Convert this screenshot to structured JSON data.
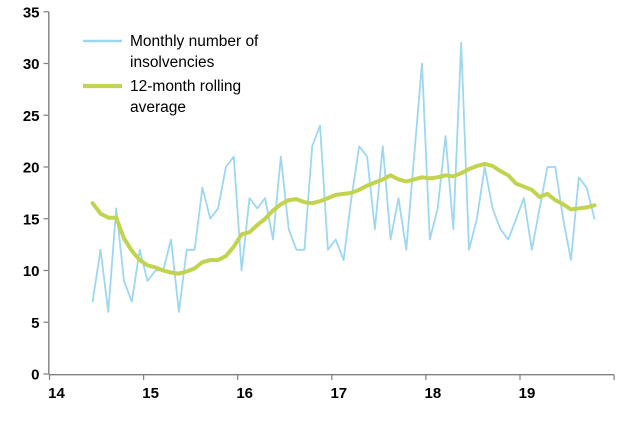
{
  "chart_data": {
    "type": "line",
    "title": "",
    "xlabel": "",
    "ylabel": "",
    "x_axis": {
      "tick_labels": [
        "14",
        "15",
        "16",
        "17",
        "18",
        "19"
      ],
      "unlabeled_end_tick": true,
      "range_years": [
        2014,
        2020
      ]
    },
    "y_axis": {
      "tick_labels": [
        "0",
        "5",
        "10",
        "15",
        "20",
        "25",
        "30",
        "35"
      ],
      "ylim": [
        0,
        35
      ],
      "tick_step": 5
    },
    "grid": "off",
    "legend_position": "top-left-inside",
    "months": [
      "2014-06",
      "2014-07",
      "2014-08",
      "2014-09",
      "2014-10",
      "2014-11",
      "2014-12",
      "2015-01",
      "2015-02",
      "2015-03",
      "2015-04",
      "2015-05",
      "2015-06",
      "2015-07",
      "2015-08",
      "2015-09",
      "2015-10",
      "2015-11",
      "2015-12",
      "2016-01",
      "2016-02",
      "2016-03",
      "2016-04",
      "2016-05",
      "2016-06",
      "2016-07",
      "2016-08",
      "2016-09",
      "2016-10",
      "2016-11",
      "2016-12",
      "2017-01",
      "2017-02",
      "2017-03",
      "2017-04",
      "2017-05",
      "2017-06",
      "2017-07",
      "2017-08",
      "2017-09",
      "2017-10",
      "2017-11",
      "2017-12",
      "2018-01",
      "2018-02",
      "2018-03",
      "2018-04",
      "2018-05",
      "2018-06",
      "2018-07",
      "2018-08",
      "2018-09",
      "2018-10",
      "2018-11",
      "2018-12",
      "2019-01",
      "2019-02",
      "2019-03",
      "2019-04",
      "2019-05",
      "2019-06",
      "2019-07",
      "2019-08",
      "2019-09",
      "2019-10"
    ],
    "series": [
      {
        "name": "Monthly number of insolvencies",
        "color": "#9dd7f0",
        "stroke_width": 1.8,
        "values": [
          7,
          12,
          6,
          16,
          9,
          7,
          12,
          9,
          10,
          10,
          13,
          6,
          12,
          12,
          18,
          15,
          16,
          20,
          21,
          10,
          17,
          16,
          17,
          13,
          21,
          14,
          12,
          12,
          22,
          24,
          12,
          13,
          11,
          17,
          22,
          21,
          14,
          22,
          13,
          17,
          12,
          21,
          30,
          13,
          16,
          23,
          14,
          32,
          12,
          15,
          20,
          16,
          14,
          13,
          15,
          17,
          12,
          16,
          20,
          20,
          15,
          11,
          19,
          18,
          15
        ]
      },
      {
        "name": "12-month rolling average",
        "color": "#c1d34f",
        "stroke_width": 4,
        "values": [
          16.5,
          15.5,
          15.1,
          15.1,
          13.1,
          11.9,
          11.0,
          10.5,
          10.3,
          10.0,
          9.8,
          9.7,
          9.9,
          10.2,
          10.8,
          11.0,
          11.0,
          11.4,
          12.3,
          13.5,
          13.7,
          14.4,
          15.0,
          15.8,
          16.4,
          16.8,
          16.9,
          16.6,
          16.5,
          16.7,
          17.0,
          17.3,
          17.4,
          17.5,
          17.8,
          18.2,
          18.5,
          18.8,
          19.2,
          18.8,
          18.6,
          18.8,
          19.0,
          18.9,
          19.0,
          19.2,
          19.1,
          19.4,
          19.8,
          20.1,
          20.3,
          20.1,
          19.6,
          19.2,
          18.4,
          18.1,
          17.8,
          17.1,
          17.4,
          16.8,
          16.4,
          15.9,
          16.0,
          16.1,
          16.3
        ]
      }
    ]
  },
  "legend": {
    "items": [
      {
        "label_line1": "Monthly number of",
        "label_line2": "insolvencies",
        "color": "#9dd7f0"
      },
      {
        "label_line1": "12-month rolling",
        "label_line2": "average",
        "color": "#c1d34f"
      }
    ]
  },
  "colors": {
    "axis": "#808080",
    "text": "#000000",
    "background": "#ffffff"
  }
}
